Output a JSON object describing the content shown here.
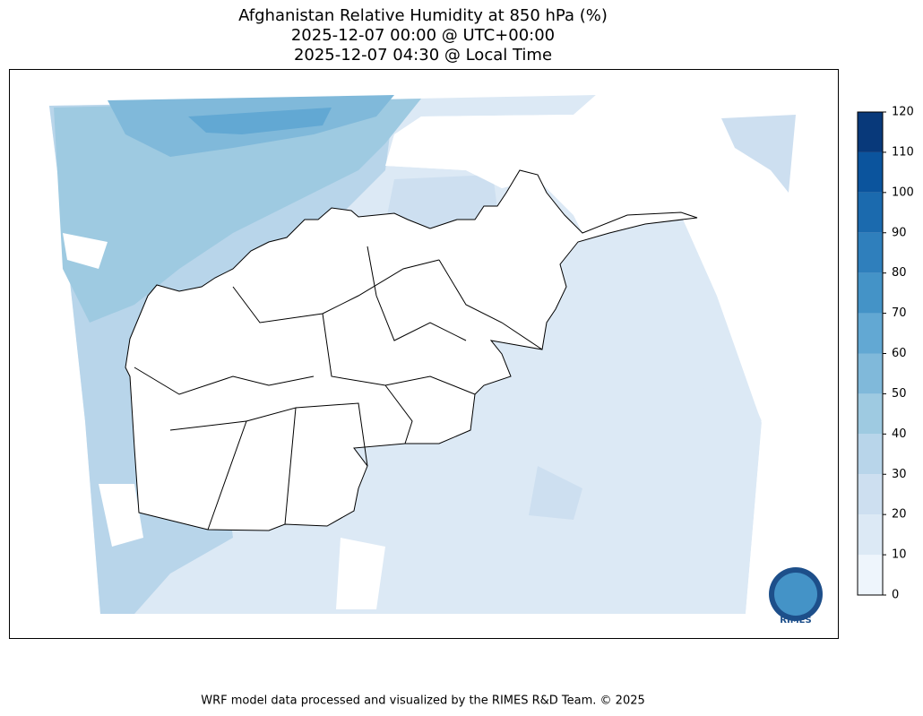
{
  "title": [
    "Afghanistan Relative Humidity at 850 hPa (%)",
    "2025-12-07 00:00 @ UTC+00:00",
    "2025-12-07 04:30 @ Local Time"
  ],
  "colorbar": {
    "lim": [
      0,
      120
    ],
    "ticks": [
      0,
      10,
      20,
      30,
      40,
      50,
      60,
      70,
      80,
      90,
      100,
      110,
      120
    ],
    "colors": [
      "#eef5fc",
      "#dce9f5",
      "#cddff0",
      "#b8d5ea",
      "#9ecae1",
      "#80b9da",
      "#62a8d3",
      "#4493c7",
      "#2f7fbc",
      "#1b6aae",
      "#0b549d",
      "#08397a"
    ]
  },
  "logo": "RIMES",
  "footer": "WRF model data processed and visualized by the RIMES R&D Team. © 2025"
}
